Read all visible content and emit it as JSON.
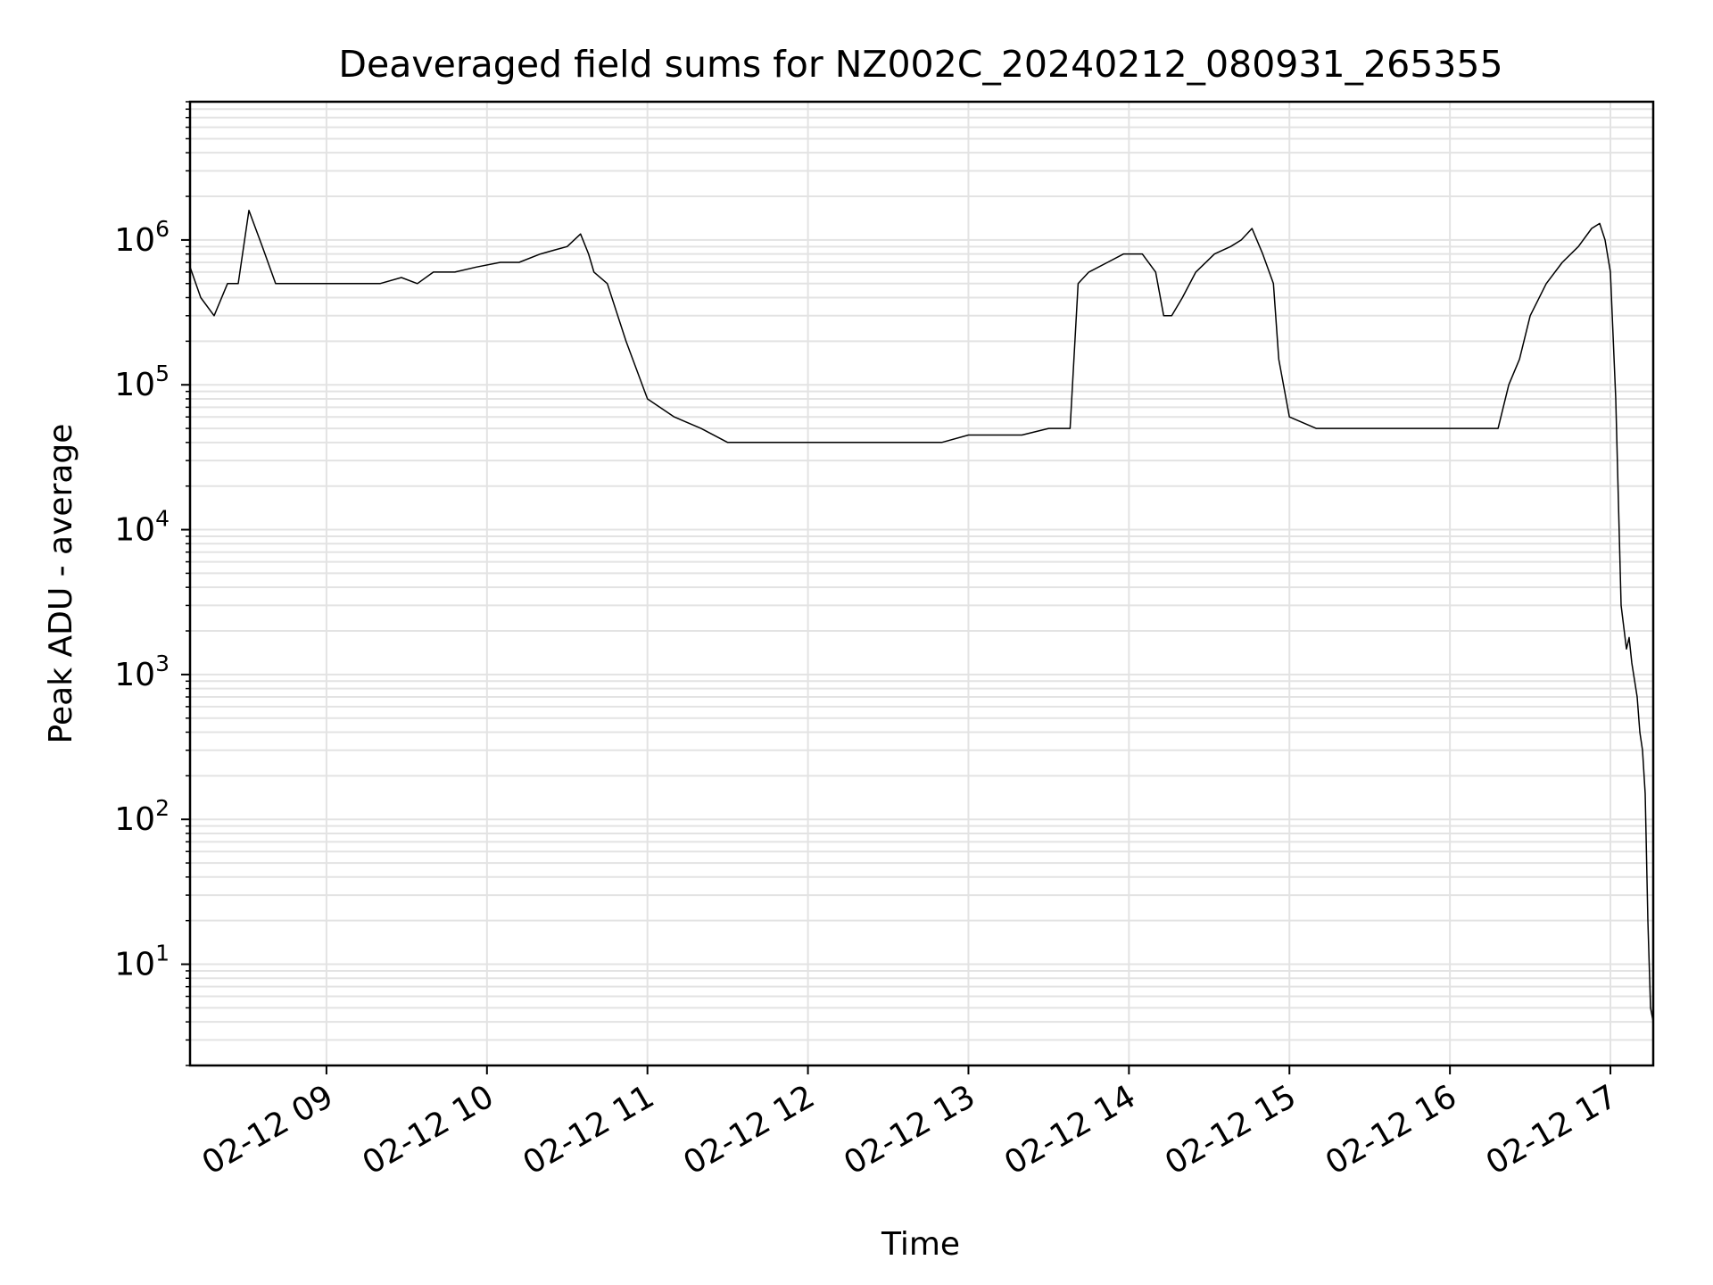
{
  "chart_data": {
    "type": "line",
    "title": "Deaveraged field sums for NZ002C_20240212_080931_265355",
    "xlabel": "Time",
    "ylabel": "Peak ADU - average",
    "yscale": "log",
    "grid": true,
    "line_color": "#000000",
    "grid_color": "#e3e3e3",
    "xlim": [
      "2024-02-12 08:09",
      "2024-02-12 17:16"
    ],
    "ylim": [
      2,
      9000000
    ],
    "x_ticks": [
      {
        "value": "2024-02-12 09:00",
        "label": "02-12 09"
      },
      {
        "value": "2024-02-12 10:00",
        "label": "02-12 10"
      },
      {
        "value": "2024-02-12 11:00",
        "label": "02-12 11"
      },
      {
        "value": "2024-02-12 12:00",
        "label": "02-12 12"
      },
      {
        "value": "2024-02-12 13:00",
        "label": "02-12 13"
      },
      {
        "value": "2024-02-12 14:00",
        "label": "02-12 14"
      },
      {
        "value": "2024-02-12 15:00",
        "label": "02-12 15"
      },
      {
        "value": "2024-02-12 16:00",
        "label": "02-12 16"
      },
      {
        "value": "2024-02-12 17:00",
        "label": "02-12 17"
      }
    ],
    "y_ticks": [
      {
        "value": 10,
        "base": "10",
        "exp": "1"
      },
      {
        "value": 100,
        "base": "10",
        "exp": "2"
      },
      {
        "value": 1000,
        "base": "10",
        "exp": "3"
      },
      {
        "value": 10000,
        "base": "10",
        "exp": "4"
      },
      {
        "value": 100000,
        "base": "10",
        "exp": "5"
      },
      {
        "value": 1000000,
        "base": "10",
        "exp": "6"
      }
    ],
    "series": [
      {
        "x": [
          "2024-02-12 08:09",
          "2024-02-12 08:13",
          "2024-02-12 08:18",
          "2024-02-12 08:23",
          "2024-02-12 08:27",
          "2024-02-12 08:31",
          "2024-02-12 08:36",
          "2024-02-12 08:41",
          "2024-02-12 08:46",
          "2024-02-12 08:52",
          "2024-02-12 08:58",
          "2024-02-12 09:05",
          "2024-02-12 09:12",
          "2024-02-12 09:20",
          "2024-02-12 09:28",
          "2024-02-12 09:34",
          "2024-02-12 09:40",
          "2024-02-12 09:48",
          "2024-02-12 09:56",
          "2024-02-12 10:05",
          "2024-02-12 10:12",
          "2024-02-12 10:20",
          "2024-02-12 10:25",
          "2024-02-12 10:30",
          "2024-02-12 10:35",
          "2024-02-12 10:38",
          "2024-02-12 10:40",
          "2024-02-12 10:45",
          "2024-02-12 10:52",
          "2024-02-12 11:00",
          "2024-02-12 11:10",
          "2024-02-12 11:20",
          "2024-02-12 11:30",
          "2024-02-12 11:40",
          "2024-02-12 11:50",
          "2024-02-12 12:00",
          "2024-02-12 12:10",
          "2024-02-12 12:20",
          "2024-02-12 12:30",
          "2024-02-12 12:40",
          "2024-02-12 12:50",
          "2024-02-12 13:00",
          "2024-02-12 13:10",
          "2024-02-12 13:20",
          "2024-02-12 13:30",
          "2024-02-12 13:38",
          "2024-02-12 13:41",
          "2024-02-12 13:45",
          "2024-02-12 13:52",
          "2024-02-12 13:58",
          "2024-02-12 14:05",
          "2024-02-12 14:10",
          "2024-02-12 14:13",
          "2024-02-12 14:16",
          "2024-02-12 14:20",
          "2024-02-12 14:25",
          "2024-02-12 14:32",
          "2024-02-12 14:38",
          "2024-02-12 14:42",
          "2024-02-12 14:46",
          "2024-02-12 14:50",
          "2024-02-12 14:54",
          "2024-02-12 14:56",
          "2024-02-12 15:00",
          "2024-02-12 15:10",
          "2024-02-12 15:20",
          "2024-02-12 15:30",
          "2024-02-12 15:40",
          "2024-02-12 15:50",
          "2024-02-12 16:00",
          "2024-02-12 16:10",
          "2024-02-12 16:18",
          "2024-02-12 16:22",
          "2024-02-12 16:26",
          "2024-02-12 16:30",
          "2024-02-12 16:36",
          "2024-02-12 16:42",
          "2024-02-12 16:48",
          "2024-02-12 16:53",
          "2024-02-12 16:56",
          "2024-02-12 16:58",
          "2024-02-12 17:00",
          "2024-02-12 17:02",
          "2024-02-12 17:04",
          "2024-02-12 17:06",
          "2024-02-12 17:07",
          "2024-02-12 17:08",
          "2024-02-12 17:10",
          "2024-02-12 17:11",
          "2024-02-12 17:12",
          "2024-02-12 17:13",
          "2024-02-12 17:14",
          "2024-02-12 17:15",
          "2024-02-12 17:16"
        ],
        "y": [
          650000,
          400000,
          300000,
          500000,
          500000,
          1600000,
          900000,
          500000,
          500000,
          500000,
          500000,
          500000,
          500000,
          500000,
          550000,
          500000,
          600000,
          600000,
          650000,
          700000,
          700000,
          800000,
          850000,
          900000,
          1100000,
          800000,
          600000,
          500000,
          200000,
          80000,
          60000,
          50000,
          40000,
          40000,
          40000,
          40000,
          40000,
          40000,
          40000,
          40000,
          40000,
          45000,
          45000,
          45000,
          50000,
          50000,
          500000,
          600000,
          700000,
          800000,
          800000,
          600000,
          300000,
          300000,
          400000,
          600000,
          800000,
          900000,
          1000000,
          1200000,
          800000,
          500000,
          150000,
          60000,
          50000,
          50000,
          50000,
          50000,
          50000,
          50000,
          50000,
          50000,
          100000,
          150000,
          300000,
          500000,
          700000,
          900000,
          1200000,
          1300000,
          1000000,
          600000,
          80000,
          3000,
          1500,
          1800,
          1200,
          700,
          400,
          300,
          150,
          20,
          5,
          4
        ]
      }
    ]
  }
}
